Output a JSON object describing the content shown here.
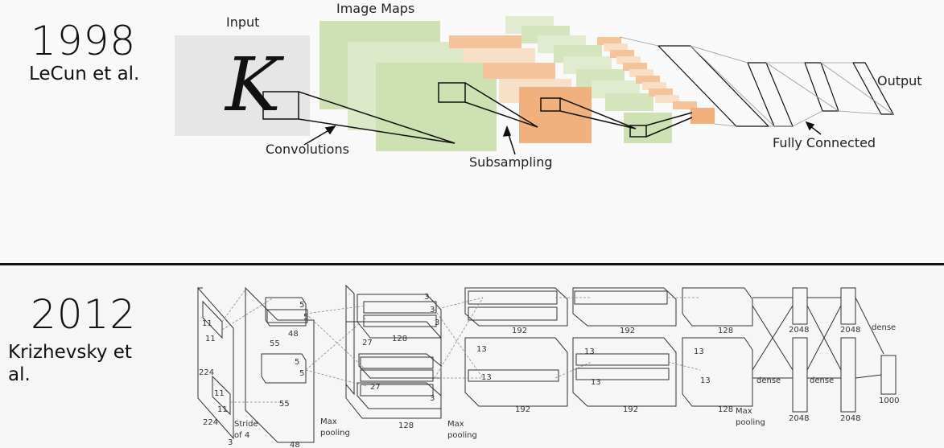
{
  "top": {
    "year": "1998",
    "author": "LeCun et al.",
    "labels": {
      "input": "Input",
      "input_glyph": "K",
      "image_maps": "Image Maps",
      "convolutions": "Convolutions",
      "subsampling": "Subsampling",
      "fully_connected": "Fully Connected",
      "output": "Output"
    }
  },
  "bottom": {
    "year": "2012",
    "author_line1": "Krizhevsky et",
    "author_line2": "al.",
    "labels": {
      "d224a": "224",
      "d224b": "224",
      "d11a": "11",
      "d11b": "11",
      "d11c": "11",
      "d11d": "11",
      "d3": "3",
      "stride1": "Stride",
      "stride2": "of 4",
      "d55a": "55",
      "d55b": "55",
      "d48a": "48",
      "d48b": "48",
      "d5a": "5",
      "d5b": "5",
      "d5c": "5",
      "d5d": "5",
      "maxpool1a": "Max",
      "maxpool1b": "pooling",
      "d27a": "27",
      "d27b": "27",
      "d128a": "128",
      "d128b": "128",
      "d3a": "3",
      "d3b": "3",
      "d3c": "3",
      "d3d": "3",
      "maxpool2a": "Max",
      "maxpool2b": "pooling",
      "d13a": "13",
      "d13b": "13",
      "d192a": "192",
      "d192b": "192",
      "d13c": "13",
      "d13d": "13",
      "d192c": "192",
      "d192d": "192",
      "d13e": "13",
      "d13f": "13",
      "d128c": "128",
      "d128d": "128",
      "maxpool3a": "Max",
      "maxpool3b": "pooling",
      "dense1": "dense",
      "dense2": "dense",
      "dense3": "dense",
      "d2048a": "2048",
      "d2048b": "2048",
      "d2048c": "2048",
      "d2048d": "2048",
      "d1000": "1000"
    }
  }
}
